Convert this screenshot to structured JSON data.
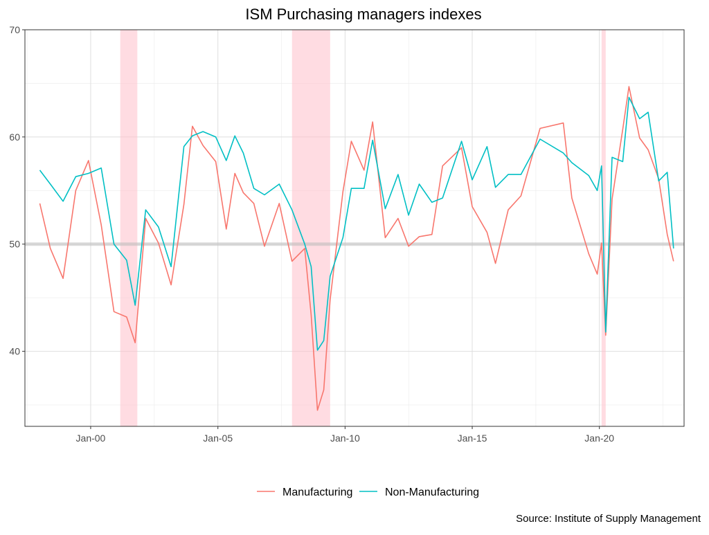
{
  "chart_data": {
    "type": "line",
    "title": "ISM Purchasing managers indexes",
    "caption": "Source: Institute of Supply Management",
    "xlabel": "",
    "ylabel": "",
    "xlim": [
      "1997-06-01",
      "2023-05-01"
    ],
    "ylim": [
      33,
      70
    ],
    "x_ticks": [
      {
        "date": "2000-01-01",
        "label": "Jan-00"
      },
      {
        "date": "2005-01-01",
        "label": "Jan-05"
      },
      {
        "date": "2010-01-01",
        "label": "Jan-10"
      },
      {
        "date": "2015-01-01",
        "label": "Jan-15"
      },
      {
        "date": "2020-01-01",
        "label": "Jan-20"
      }
    ],
    "y_ticks": [
      40,
      50,
      60,
      70
    ],
    "y_minor": [
      35,
      45,
      55,
      65
    ],
    "grid": true,
    "legend_position": "bottom",
    "reference_line": 50,
    "recessions": [
      {
        "start": "2001-03-01",
        "end": "2001-11-01"
      },
      {
        "start": "2007-12-01",
        "end": "2009-06-01"
      },
      {
        "start": "2020-02-01",
        "end": "2020-04-01"
      }
    ],
    "series": [
      {
        "name": "Manufacturing",
        "color": "#F8766D",
        "points": [
          [
            "1998-01-01",
            53.8
          ],
          [
            "1998-06-01",
            49.6
          ],
          [
            "1998-12-01",
            46.8
          ],
          [
            "1999-06-01",
            55.0
          ],
          [
            "1999-12-01",
            57.8
          ],
          [
            "2000-06-01",
            51.8
          ],
          [
            "2000-12-01",
            43.7
          ],
          [
            "2001-06-01",
            43.2
          ],
          [
            "2001-10-01",
            40.8
          ],
          [
            "2002-03-01",
            52.4
          ],
          [
            "2002-09-01",
            50.1
          ],
          [
            "2003-03-01",
            46.2
          ],
          [
            "2003-09-01",
            53.7
          ],
          [
            "2004-01-01",
            61.0
          ],
          [
            "2004-06-01",
            59.2
          ],
          [
            "2004-12-01",
            57.7
          ],
          [
            "2005-05-01",
            51.4
          ],
          [
            "2005-09-01",
            56.6
          ],
          [
            "2006-01-01",
            54.8
          ],
          [
            "2006-06-01",
            53.8
          ],
          [
            "2006-11-01",
            49.8
          ],
          [
            "2007-06-01",
            53.8
          ],
          [
            "2007-12-01",
            48.4
          ],
          [
            "2008-06-01",
            49.6
          ],
          [
            "2008-09-01",
            43.4
          ],
          [
            "2008-12-01",
            34.5
          ],
          [
            "2009-03-01",
            36.4
          ],
          [
            "2009-06-01",
            44.8
          ],
          [
            "2009-12-01",
            54.9
          ],
          [
            "2010-04-01",
            59.6
          ],
          [
            "2010-10-01",
            56.9
          ],
          [
            "2011-02-01",
            61.4
          ],
          [
            "2011-08-01",
            50.6
          ],
          [
            "2012-02-01",
            52.4
          ],
          [
            "2012-07-01",
            49.8
          ],
          [
            "2012-12-01",
            50.7
          ],
          [
            "2013-06-01",
            50.9
          ],
          [
            "2013-11-01",
            57.3
          ],
          [
            "2014-08-01",
            59.0
          ],
          [
            "2015-01-01",
            53.5
          ],
          [
            "2015-08-01",
            51.1
          ],
          [
            "2015-12-01",
            48.2
          ],
          [
            "2016-06-01",
            53.2
          ],
          [
            "2016-12-01",
            54.5
          ],
          [
            "2017-09-01",
            60.8
          ],
          [
            "2018-08-01",
            61.3
          ],
          [
            "2018-12-01",
            54.3
          ],
          [
            "2019-08-01",
            49.1
          ],
          [
            "2019-12-01",
            47.2
          ],
          [
            "2020-02-01",
            50.1
          ],
          [
            "2020-04-01",
            41.5
          ],
          [
            "2020-07-01",
            54.2
          ],
          [
            "2020-12-01",
            60.7
          ],
          [
            "2021-03-01",
            64.7
          ],
          [
            "2021-08-01",
            59.9
          ],
          [
            "2021-12-01",
            58.8
          ],
          [
            "2022-05-01",
            56.1
          ],
          [
            "2022-09-01",
            50.9
          ],
          [
            "2022-12-01",
            48.4
          ]
        ]
      },
      {
        "name": "Non-Manufacturing",
        "color": "#00BFC4",
        "points": [
          [
            "1998-01-01",
            56.9
          ],
          [
            "1998-06-01",
            55.6
          ],
          [
            "1998-12-01",
            54.0
          ],
          [
            "1999-06-01",
            56.3
          ],
          [
            "1999-12-01",
            56.6
          ],
          [
            "2000-06-01",
            57.1
          ],
          [
            "2000-12-01",
            50.0
          ],
          [
            "2001-06-01",
            48.5
          ],
          [
            "2001-10-01",
            44.3
          ],
          [
            "2002-03-01",
            53.2
          ],
          [
            "2002-09-01",
            51.6
          ],
          [
            "2003-03-01",
            47.9
          ],
          [
            "2003-09-01",
            59.1
          ],
          [
            "2004-01-01",
            60.1
          ],
          [
            "2004-06-01",
            60.5
          ],
          [
            "2004-12-01",
            60.0
          ],
          [
            "2005-05-01",
            57.8
          ],
          [
            "2005-09-01",
            60.1
          ],
          [
            "2006-01-01",
            58.5
          ],
          [
            "2006-06-01",
            55.2
          ],
          [
            "2006-11-01",
            54.6
          ],
          [
            "2007-06-01",
            55.6
          ],
          [
            "2007-12-01",
            53.2
          ],
          [
            "2008-06-01",
            50.0
          ],
          [
            "2008-09-01",
            47.9
          ],
          [
            "2008-12-01",
            40.1
          ],
          [
            "2009-03-01",
            41.0
          ],
          [
            "2009-06-01",
            47.0
          ],
          [
            "2009-12-01",
            50.6
          ],
          [
            "2010-04-01",
            55.2
          ],
          [
            "2010-10-01",
            55.2
          ],
          [
            "2011-02-01",
            59.7
          ],
          [
            "2011-08-01",
            53.3
          ],
          [
            "2012-02-01",
            56.5
          ],
          [
            "2012-07-01",
            52.7
          ],
          [
            "2012-12-01",
            55.6
          ],
          [
            "2013-06-01",
            53.9
          ],
          [
            "2013-11-01",
            54.3
          ],
          [
            "2014-08-01",
            59.6
          ],
          [
            "2015-01-01",
            56.0
          ],
          [
            "2015-08-01",
            59.1
          ],
          [
            "2015-12-01",
            55.3
          ],
          [
            "2016-06-01",
            56.5
          ],
          [
            "2016-12-01",
            56.5
          ],
          [
            "2017-09-01",
            59.8
          ],
          [
            "2018-08-01",
            58.5
          ],
          [
            "2018-12-01",
            57.6
          ],
          [
            "2019-08-01",
            56.4
          ],
          [
            "2019-12-01",
            55.0
          ],
          [
            "2020-02-01",
            57.3
          ],
          [
            "2020-04-01",
            41.8
          ],
          [
            "2020-07-01",
            58.1
          ],
          [
            "2020-12-01",
            57.7
          ],
          [
            "2021-03-01",
            63.7
          ],
          [
            "2021-08-01",
            61.7
          ],
          [
            "2021-12-01",
            62.3
          ],
          [
            "2022-05-01",
            55.9
          ],
          [
            "2022-09-01",
            56.7
          ],
          [
            "2022-12-01",
            49.6
          ]
        ]
      }
    ]
  }
}
